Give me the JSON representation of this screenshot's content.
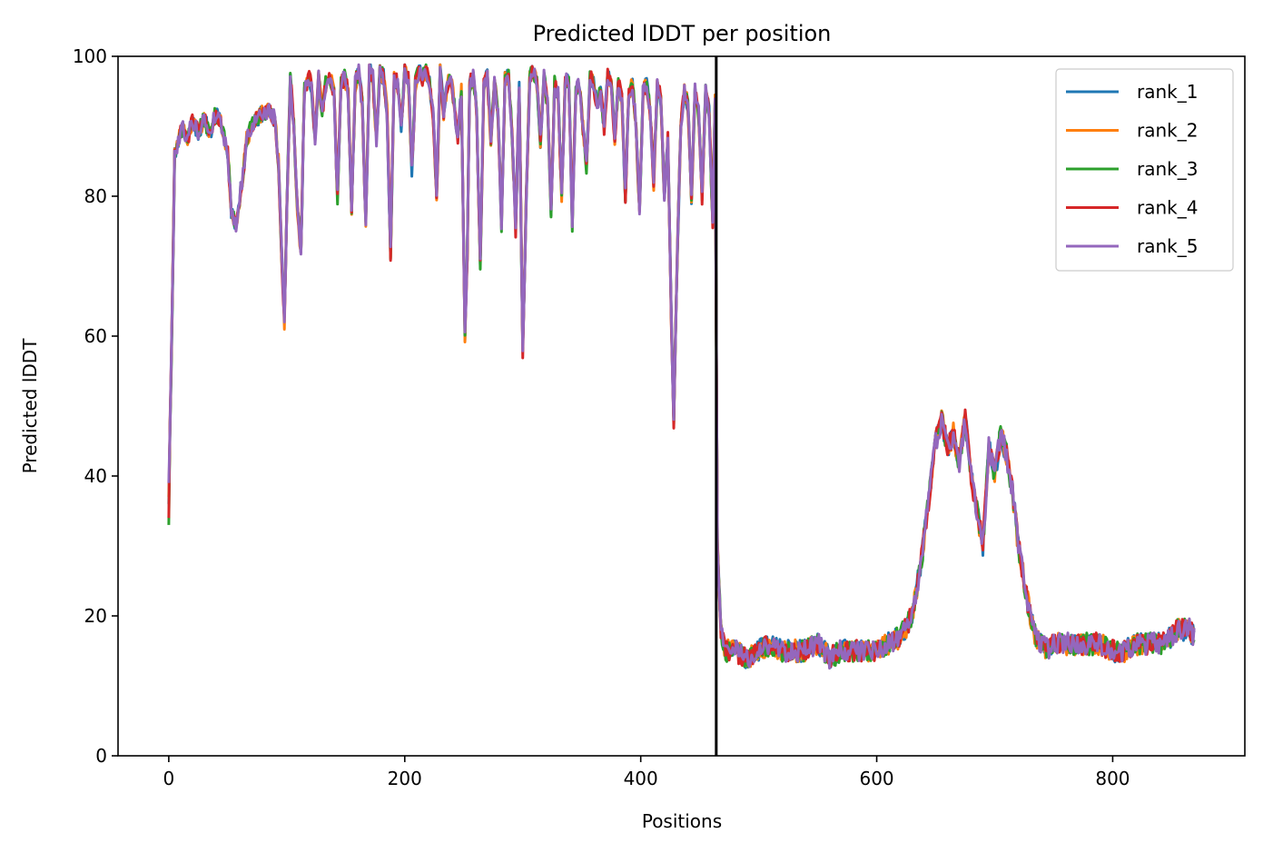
{
  "chart_data": {
    "type": "line",
    "title": "Predicted lDDT per position",
    "xlabel": "Positions",
    "ylabel": "Predicted lDDT",
    "xlim": [
      -43,
      912
    ],
    "ylim": [
      0,
      100
    ],
    "xticks": [
      0,
      200,
      400,
      600,
      800
    ],
    "yticks": [
      0,
      20,
      40,
      60,
      80,
      100
    ],
    "vline_x": 464,
    "vline_color": "#000000",
    "grid": false,
    "legend_position": "upper right",
    "profile": {
      "x": [
        0,
        2,
        5,
        8,
        12,
        16,
        20,
        25,
        30,
        35,
        40,
        45,
        50,
        53,
        57,
        62,
        66,
        70,
        75,
        80,
        85,
        90,
        93,
        96,
        98,
        100,
        103,
        106,
        109,
        112,
        115,
        118,
        121,
        124,
        127,
        130,
        133,
        137,
        140,
        143,
        146,
        149,
        152,
        155,
        158,
        161,
        164,
        167,
        170,
        173,
        176,
        179,
        182,
        185,
        188,
        191,
        194,
        197,
        200,
        203,
        206,
        209,
        212,
        215,
        218,
        221,
        224,
        227,
        230,
        233,
        236,
        239,
        242,
        245,
        248,
        251,
        253,
        255,
        258,
        261,
        264,
        267,
        270,
        273,
        276,
        279,
        282,
        285,
        288,
        291,
        294,
        297,
        300,
        303,
        306,
        309,
        312,
        315,
        318,
        321,
        324,
        327,
        330,
        333,
        336,
        339,
        342,
        345,
        348,
        351,
        354,
        357,
        360,
        363,
        366,
        369,
        372,
        375,
        378,
        381,
        384,
        387,
        390,
        393,
        396,
        399,
        402,
        405,
        408,
        411,
        414,
        417,
        420,
        423,
        426,
        428,
        431,
        434,
        437,
        440,
        443,
        446,
        449,
        452,
        455,
        458,
        461,
        463,
        465,
        468,
        472,
        480,
        490,
        500,
        510,
        520,
        530,
        540,
        550,
        560,
        570,
        580,
        590,
        600,
        610,
        620,
        630,
        638,
        645,
        650,
        655,
        660,
        665,
        670,
        675,
        680,
        685,
        690,
        695,
        700,
        705,
        710,
        715,
        720,
        725,
        730,
        735,
        740,
        745,
        750,
        760,
        770,
        780,
        790,
        800,
        810,
        820,
        830,
        840,
        850,
        855,
        860,
        865,
        869
      ],
      "y": [
        38,
        55,
        86,
        88,
        90,
        88,
        91,
        89,
        91,
        89,
        92,
        90,
        86,
        78,
        76,
        82,
        88,
        90,
        91,
        92,
        92,
        91,
        85,
        70,
        62,
        78,
        97,
        90,
        78,
        72,
        95,
        97,
        96,
        88,
        97,
        92,
        96,
        97,
        95,
        80,
        96,
        97,
        95,
        78,
        96,
        98,
        93,
        76,
        98,
        97,
        88,
        98,
        97,
        92,
        72,
        97,
        96,
        90,
        98,
        97,
        84,
        96,
        98,
        97,
        98,
        96,
        92,
        80,
        98,
        92,
        96,
        97,
        93,
        88,
        95,
        60,
        72,
        96,
        97,
        92,
        70,
        96,
        97,
        88,
        96,
        92,
        76,
        97,
        97,
        89,
        75,
        96,
        58,
        80,
        97,
        98,
        96,
        88,
        97,
        93,
        78,
        96,
        95,
        80,
        96,
        97,
        76,
        95,
        96,
        90,
        84,
        97,
        96,
        93,
        95,
        90,
        97,
        96,
        88,
        96,
        94,
        80,
        95,
        96,
        90,
        78,
        95,
        96,
        92,
        82,
        96,
        94,
        80,
        88,
        62,
        48,
        72,
        90,
        95,
        93,
        80,
        95,
        92,
        80,
        95,
        92,
        76,
        94,
        30,
        18,
        15,
        15,
        14,
        15,
        16,
        15,
        15,
        15,
        16,
        14,
        15,
        15,
        15,
        15,
        16,
        17,
        20,
        28,
        38,
        45,
        48,
        44,
        46,
        42,
        48,
        40,
        35,
        30,
        44,
        40,
        46,
        43,
        38,
        30,
        25,
        20,
        17,
        16,
        15,
        16,
        16,
        16,
        16,
        16,
        15,
        15,
        16,
        16,
        16,
        17,
        18,
        18,
        18,
        17
      ]
    },
    "series": [
      {
        "name": "rank_1",
        "color": "#1f77b4"
      },
      {
        "name": "rank_2",
        "color": "#ff7f0e"
      },
      {
        "name": "rank_3",
        "color": "#2ca02c"
      },
      {
        "name": "rank_4",
        "color": "#d62728"
      },
      {
        "name": "rank_5",
        "color": "#9467bd"
      }
    ]
  }
}
